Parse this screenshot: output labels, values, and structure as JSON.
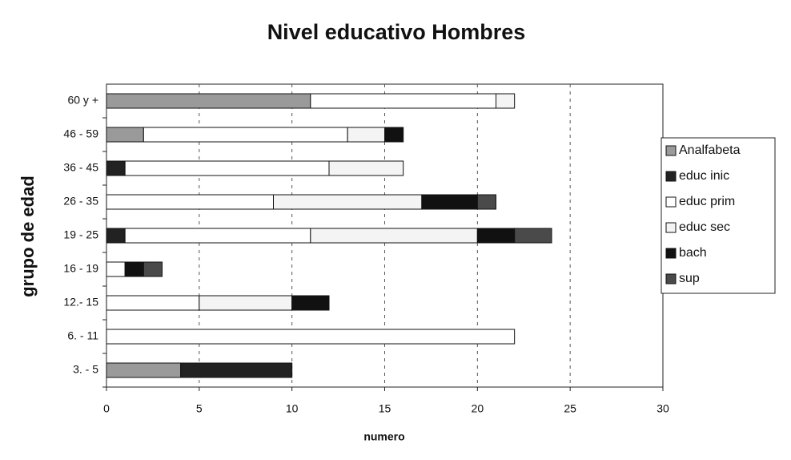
{
  "chart_data": {
    "type": "stacked-barh",
    "title": "Nivel educativo Hombres",
    "xlabel": "numero",
    "ylabel": "grupo de edad",
    "categories": [
      "3. - 5",
      "6. - 11",
      "12.- 15",
      "16 - 19",
      "19 - 25",
      "26 - 35",
      "36 - 45",
      "46 - 59",
      "60 y +"
    ],
    "series": [
      {
        "name": "Analfabeta",
        "color": "#9a9a9a",
        "values": [
          4,
          0,
          0,
          0,
          0,
          0,
          0,
          2,
          11
        ]
      },
      {
        "name": "educ inic",
        "color": "#222222",
        "values": [
          6,
          0,
          0,
          0,
          1,
          0,
          1,
          0,
          0
        ]
      },
      {
        "name": "educ prim",
        "color": "#ffffff",
        "values": [
          0,
          22,
          5,
          1,
          10,
          9,
          11,
          11,
          10
        ]
      },
      {
        "name": "educ sec",
        "color": "#f4f4f4",
        "values": [
          0,
          0,
          5,
          0,
          9,
          8,
          4,
          2,
          1
        ]
      },
      {
        "name": "bach",
        "color": "#111111",
        "values": [
          0,
          0,
          2,
          1,
          2,
          3,
          0,
          1,
          0
        ]
      },
      {
        "name": "sup",
        "color": "#4a4a4a",
        "values": [
          0,
          0,
          0,
          1,
          2,
          1,
          0,
          0,
          0
        ]
      }
    ],
    "xlim": [
      0,
      30
    ],
    "xticks": [
      0,
      5,
      10,
      15,
      20,
      25,
      30
    ],
    "grid": true,
    "legend": "right"
  }
}
